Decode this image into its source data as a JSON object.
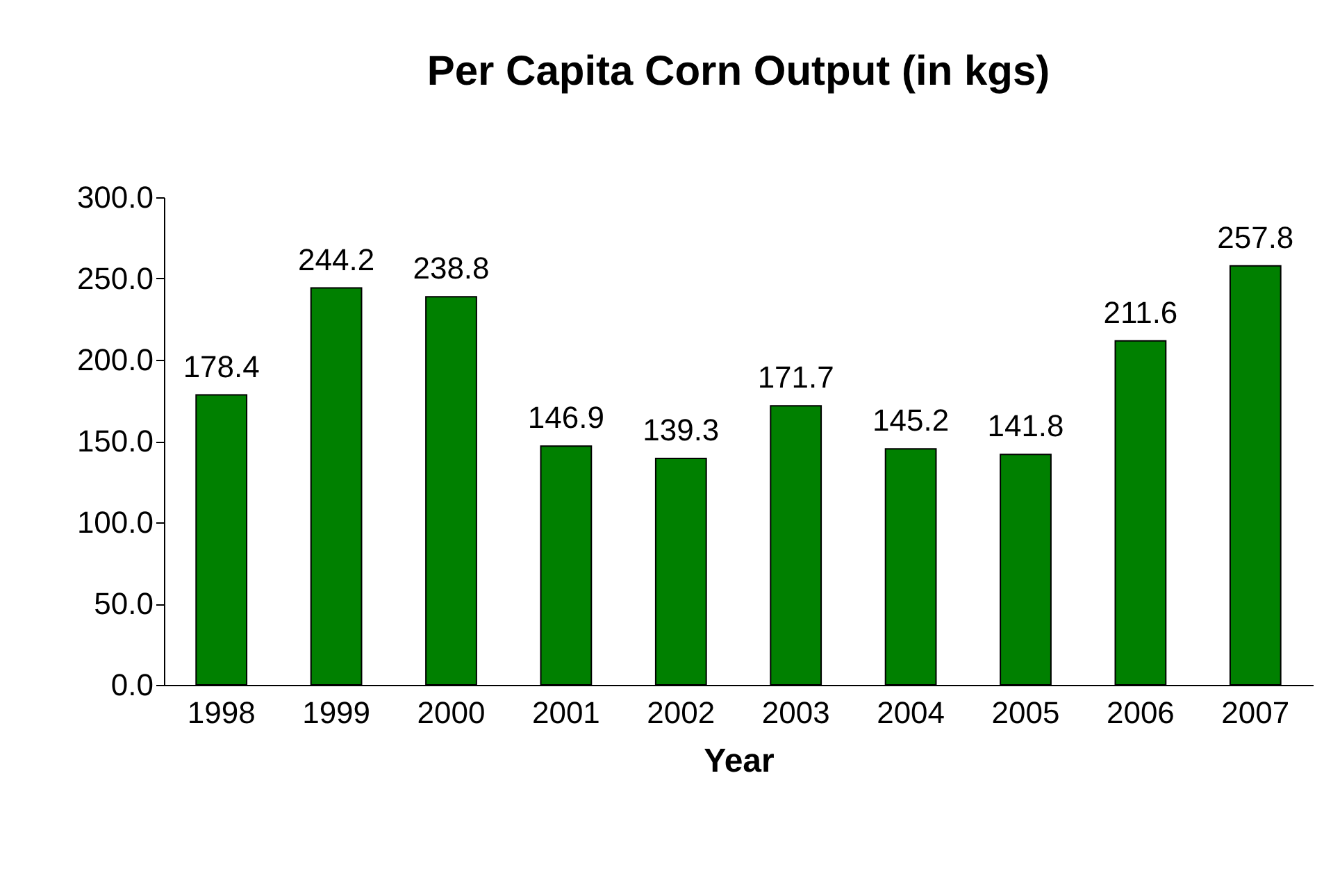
{
  "chart_data": {
    "type": "bar",
    "title": "Per Capita Corn Output (in kgs)",
    "xlabel": "Year",
    "categories": [
      "1998",
      "1999",
      "2000",
      "2001",
      "2002",
      "2003",
      "2004",
      "2005",
      "2006",
      "2007"
    ],
    "values": [
      178.4,
      244.2,
      238.8,
      146.9,
      139.3,
      171.7,
      145.2,
      141.8,
      211.6,
      257.8
    ],
    "color": "#008000",
    "ylim": [
      0,
      300
    ],
    "yticks": [
      {
        "value": 0,
        "label": "0.0"
      },
      {
        "value": 50,
        "label": "50.0"
      },
      {
        "value": 100,
        "label": "100.0"
      },
      {
        "value": 150,
        "label": "150.0"
      },
      {
        "value": 200,
        "label": "200.0"
      },
      {
        "value": 250,
        "label": "250.0"
      },
      {
        "value": 300,
        "label": "300.0"
      }
    ],
    "data_labels": true,
    "grid": false
  }
}
